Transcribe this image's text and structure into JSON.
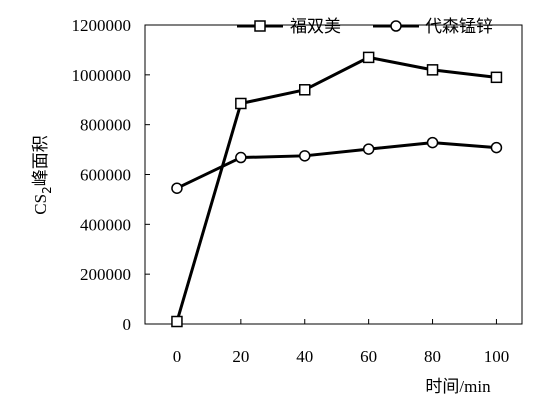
{
  "chart_data": {
    "type": "line",
    "title": "",
    "xlabel": "时间/min",
    "ylabel": {
      "prefix": "CS",
      "subscript": "2",
      "suffix": "峰面积"
    },
    "x": [
      0,
      20,
      40,
      60,
      80,
      100
    ],
    "xlim": [
      -10,
      108
    ],
    "ylim": [
      0,
      1200000
    ],
    "x_ticks": [
      "0",
      "20",
      "40",
      "60",
      "80",
      "100"
    ],
    "y_ticks": [
      "0",
      "200000",
      "400000",
      "600000",
      "800000",
      "1000000",
      "1200000"
    ],
    "grid": false,
    "legend_position": "top-right",
    "series": [
      {
        "name": "福双美",
        "marker": "square",
        "color": "#000000",
        "values": [
          10000,
          885000,
          940000,
          1070000,
          1020000,
          990000
        ]
      },
      {
        "name": "代森锰锌",
        "marker": "circle",
        "color": "#000000",
        "values": [
          545000,
          668000,
          675000,
          702000,
          728000,
          708000
        ]
      }
    ]
  }
}
